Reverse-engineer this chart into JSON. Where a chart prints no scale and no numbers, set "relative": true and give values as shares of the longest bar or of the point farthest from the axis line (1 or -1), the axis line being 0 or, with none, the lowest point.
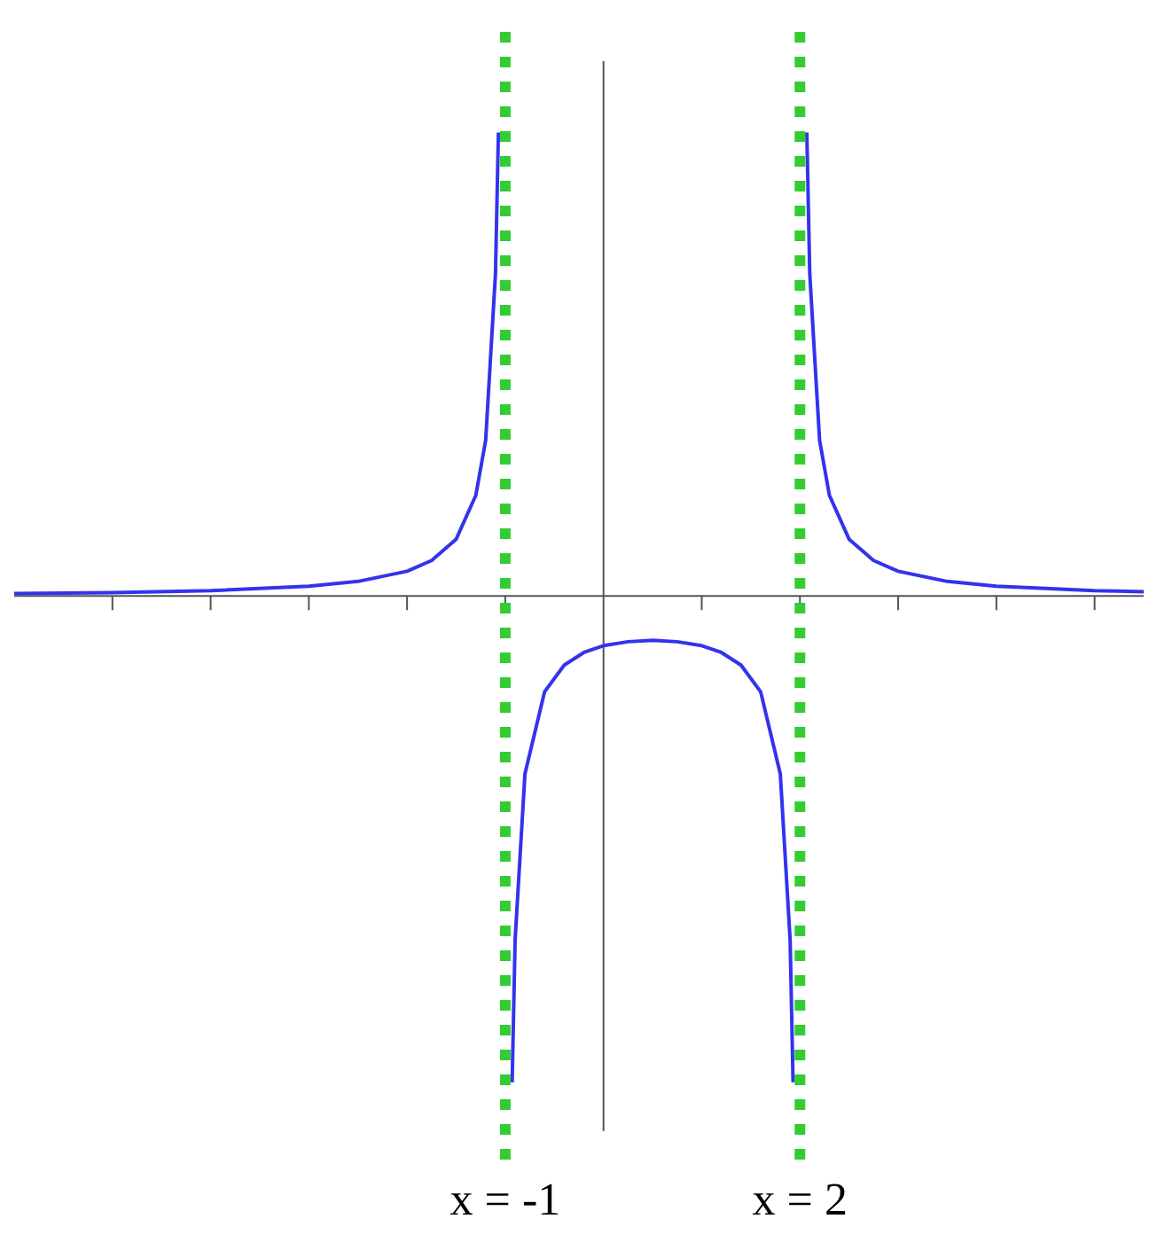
{
  "chart_data": {
    "type": "line",
    "relative": true,
    "xlim": [
      -6,
      5.5
    ],
    "xticks": [
      {
        "value": -5,
        "label": null
      },
      {
        "value": -4,
        "label": null
      },
      {
        "value": -3,
        "label": null
      },
      {
        "value": -2,
        "label": null
      },
      {
        "value": -1,
        "label": "x = -1"
      },
      {
        "value": 1,
        "label": null
      },
      {
        "value": 2,
        "label": "x = 2"
      },
      {
        "value": 3,
        "label": null
      },
      {
        "value": 4,
        "label": null
      },
      {
        "value": 5,
        "label": null
      }
    ],
    "series": [
      {
        "color": "#3333ee",
        "x": [
          -6,
          -5,
          -4,
          -3,
          -2.5,
          -2,
          -1.75,
          -1.5,
          -1.3,
          -1.2,
          -1.1,
          -1.07
        ],
        "values": [
          0.005,
          0.007,
          0.011,
          0.02,
          0.03,
          0.051,
          0.073,
          0.117,
          0.207,
          0.32,
          0.662,
          0.953
        ]
      },
      {
        "color": "#3333ee",
        "x": [
          -0.93,
          -0.9,
          -0.8,
          -0.6,
          -0.4,
          -0.2,
          0,
          0.25,
          0.5,
          0.75,
          1,
          1.2,
          1.4,
          1.6,
          1.8,
          1.9,
          1.93
        ],
        "values": [
          -1,
          -0.707,
          -0.366,
          -0.197,
          -0.142,
          -0.116,
          -0.102,
          -0.094,
          -0.091,
          -0.094,
          -0.102,
          -0.116,
          -0.142,
          -0.197,
          -0.366,
          -0.707,
          -1
        ]
      },
      {
        "color": "#3333ee",
        "x": [
          2.07,
          2.1,
          2.2,
          2.3,
          2.5,
          2.75,
          3,
          3.5,
          4,
          5,
          5.5
        ],
        "values": [
          0.953,
          0.662,
          0.32,
          0.207,
          0.117,
          0.073,
          0.051,
          0.03,
          0.02,
          0.011,
          0.009
        ]
      }
    ],
    "ref_lines": [
      {
        "axis": "x",
        "value": -1,
        "color": "#33cc33",
        "line_style": "dotted"
      },
      {
        "axis": "x",
        "value": 2,
        "color": "#33cc33",
        "line_style": "dotted"
      }
    ],
    "grid": false,
    "legend": false,
    "marker": "none",
    "line_style": "solid"
  }
}
